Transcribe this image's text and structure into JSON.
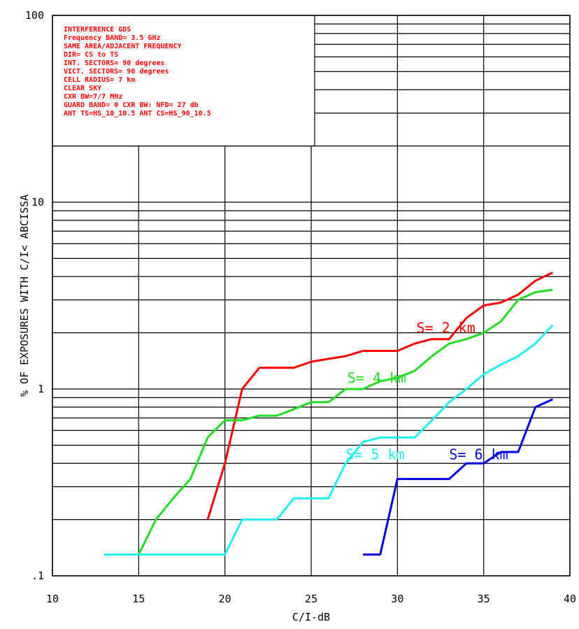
{
  "chart_data": {
    "type": "line",
    "title": "",
    "xlabel": "C/I-dB",
    "ylabel": "% OF EXPOSURES WITH C/I< ABCISSA",
    "xlim": [
      10,
      40
    ],
    "ylim": [
      0.1,
      100
    ],
    "yscale": "log",
    "grid": true,
    "x_ticks": [
      "10",
      "15",
      "20",
      "25",
      "30",
      "35",
      "40"
    ],
    "y_ticks": [
      ".1",
      "1",
      "10",
      "100"
    ],
    "legend": "none",
    "colors": {
      "red": "#ff0000",
      "green": "#22dd22",
      "cyan": "#22eeee",
      "blue": "#0000dd",
      "text": "#ff0000"
    },
    "info_box": {
      "lines": [
        "INTERFERENCE GDS",
        "Frequency BAND= 3.5 GHz",
        "SAME AREA/ADJACENT FREQUENCY",
        "DIR= CS to TS",
        "INT. SECTORS= 90 degrees",
        "VICT. SECTORS= 90 degrees",
        "CELL RADIUS= 7 km",
        "CLEAR SKY",
        "CXR BW=7/7 MHz",
        "GUARD BAND= 0 CXR BW: NFD= 27 db",
        "ANT TS=HS_10_10.5    ANT CS=HS_90_10.5"
      ]
    },
    "series": [
      {
        "name": "S= 2 km",
        "color": "#ff0000",
        "x": [
          19,
          20,
          21,
          22,
          23,
          24,
          25,
          26,
          27,
          28,
          29,
          30,
          31,
          32,
          33,
          34,
          35,
          36,
          37,
          38,
          39
        ],
        "y": [
          0.2,
          0.4,
          1.0,
          1.3,
          1.3,
          1.3,
          1.4,
          1.45,
          1.5,
          1.6,
          1.6,
          1.6,
          1.75,
          1.85,
          1.85,
          2.4,
          2.8,
          2.9,
          3.2,
          3.8,
          4.2
        ]
      },
      {
        "name": "S= 4 km",
        "color": "#22dd22",
        "x": [
          15,
          16,
          17,
          18,
          19,
          20,
          21,
          22,
          23,
          24,
          25,
          26,
          27,
          28,
          29,
          30,
          31,
          32,
          33,
          34,
          35,
          36,
          37,
          38,
          39
        ],
        "y": [
          0.13,
          0.2,
          0.26,
          0.33,
          0.55,
          0.68,
          0.68,
          0.72,
          0.72,
          0.78,
          0.85,
          0.85,
          1.0,
          1.0,
          1.1,
          1.15,
          1.25,
          1.5,
          1.75,
          1.85,
          2.0,
          2.3,
          3.0,
          3.3,
          3.4
        ]
      },
      {
        "name": "S= 5 km",
        "color": "#22eeee",
        "x": [
          13,
          14,
          15,
          16,
          17,
          18,
          19,
          20,
          21,
          22,
          23,
          24,
          25,
          26,
          27,
          28,
          29,
          30,
          31,
          32,
          33,
          34,
          35,
          36,
          37,
          38,
          39
        ],
        "y": [
          0.13,
          0.13,
          0.13,
          0.13,
          0.13,
          0.13,
          0.13,
          0.13,
          0.2,
          0.2,
          0.2,
          0.26,
          0.26,
          0.26,
          0.4,
          0.52,
          0.55,
          0.55,
          0.55,
          0.68,
          0.85,
          1.0,
          1.2,
          1.35,
          1.5,
          1.75,
          2.2
        ]
      },
      {
        "name": "S= 6 km",
        "color": "#0000dd",
        "x": [
          28,
          29,
          30,
          31,
          32,
          33,
          34,
          35,
          36,
          37,
          38,
          39
        ],
        "y": [
          0.13,
          0.13,
          0.33,
          0.33,
          0.33,
          0.33,
          0.4,
          0.4,
          0.46,
          0.46,
          0.8,
          0.88
        ]
      }
    ]
  }
}
